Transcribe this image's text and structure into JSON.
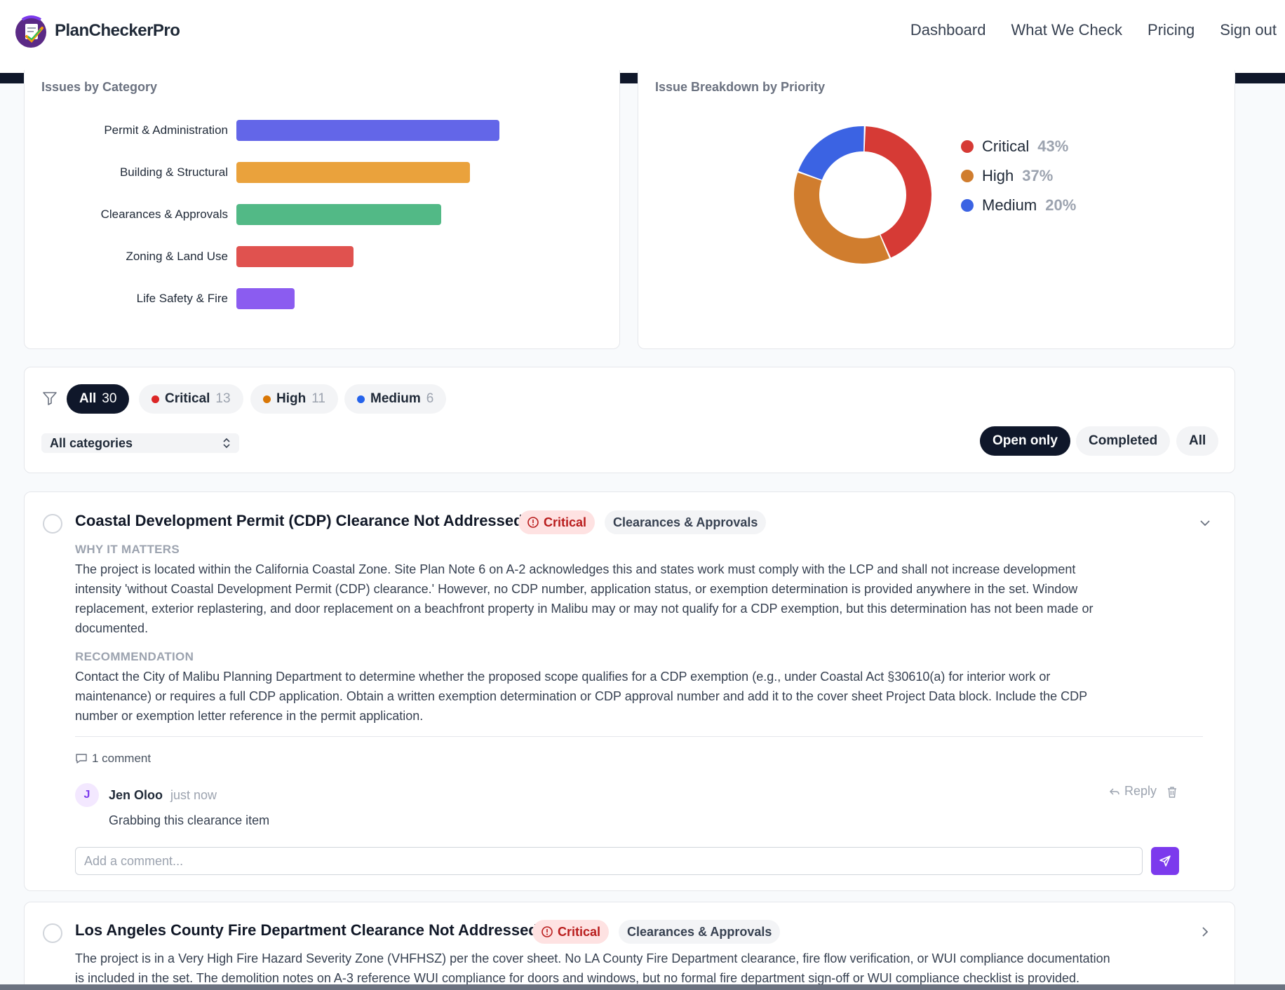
{
  "brand": {
    "name": "PlanCheckerPro"
  },
  "nav": {
    "items": [
      "Dashboard",
      "What We Check",
      "Pricing",
      "Sign out"
    ]
  },
  "category_chart": {
    "title": "Issues by Category",
    "chart_data": {
      "type": "bar",
      "orientation": "horizontal",
      "categories": [
        "Permit & Administration",
        "Building & Structural",
        "Clearances & Approvals",
        "Zoning & Land Use",
        "Life Safety & Fire"
      ],
      "values": [
        9,
        8,
        7,
        4,
        2
      ],
      "colors": [
        "#6366e8",
        "#eaa23c",
        "#52b986",
        "#e0524f",
        "#8b5cf0"
      ]
    }
  },
  "priority_chart": {
    "title": "Issue Breakdown by Priority",
    "chart_data": {
      "type": "pie",
      "donut": true,
      "labels": [
        "Critical",
        "High",
        "Medium"
      ],
      "values": [
        43,
        37,
        20
      ],
      "display": [
        "43%",
        "37%",
        "20%"
      ],
      "colors": [
        "#d63a35",
        "#d07d2e",
        "#3b63e3"
      ]
    }
  },
  "filters": {
    "severity": [
      {
        "label": "All",
        "count": "30",
        "active": true,
        "color": ""
      },
      {
        "label": "Critical",
        "count": "13",
        "active": false,
        "color": "#dc2626"
      },
      {
        "label": "High",
        "count": "11",
        "active": false,
        "color": "#d97706"
      },
      {
        "label": "Medium",
        "count": "6",
        "active": false,
        "color": "#2563eb"
      }
    ],
    "category_select": "All categories",
    "status": [
      "Open only",
      "Completed",
      "All"
    ]
  },
  "issues": [
    {
      "title": "Coastal Development Permit (CDP) Clearance Not Addressed",
      "priority": "Critical",
      "category": "Clearances & Approvals",
      "why_label": "WHY IT MATTERS",
      "why_lines": [
        "The project is located within the California Coastal Zone. Site Plan Note 6 on A-2 acknowledges this and states work must comply with the LCP and shall not increase development",
        "intensity 'without Coastal Development Permit (CDP) clearance.' However, no CDP number, application status, or exemption determination is provided anywhere in the set. Window",
        "replacement, exterior replastering, and door replacement on a beachfront property in Malibu may or may not qualify for a CDP exemption, but this determination has not been made or",
        "documented."
      ],
      "rec_label": "RECOMMENDATION",
      "rec_lines": [
        "Contact the City of Malibu Planning Department to determine whether the proposed scope qualifies for a CDP exemption (e.g., under Coastal Act §30610(a) for interior work or",
        "maintenance) or requires a full CDP application. Obtain a written exemption determination or CDP approval number and add it to the cover sheet Project Data block. Include the CDP",
        "number or exemption letter reference in the permit application."
      ],
      "comment_count": "1 comment",
      "comment": {
        "initial": "J",
        "author": "Jen Oloo",
        "time": "just now",
        "text": "Grabbing this clearance item",
        "reply": "Reply"
      },
      "input_placeholder": "Add a comment..."
    },
    {
      "title": "Los Angeles County Fire Department Clearance Not Addressed",
      "priority": "Critical",
      "category": "Clearances & Approvals",
      "lines": [
        "The project is in a Very High Fire Hazard Severity Zone (VHFHSZ) per the cover sheet. No LA County Fire Department clearance, fire flow verification, or WUI compliance documentation",
        "is included in the set. The demolition notes on A-3 reference WUI compliance for doors and windows, but no formal fire department sign-off or WUI compliance checklist is provided."
      ]
    }
  ],
  "colors": {
    "accent": "#7c3aed",
    "header_bar": "#0f172a",
    "critical_bg": "#fee2e2",
    "critical_text": "#b91c1c"
  }
}
